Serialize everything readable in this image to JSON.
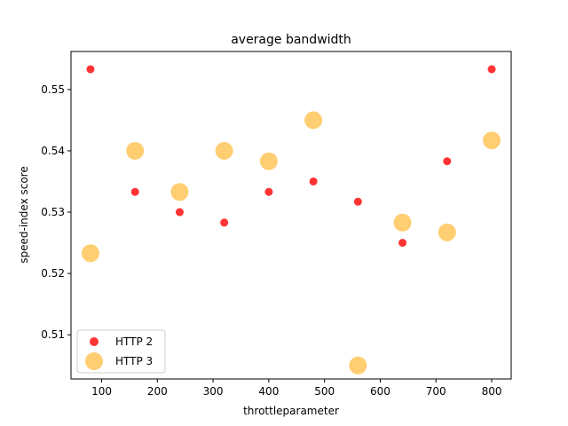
{
  "chart_data": {
    "type": "scatter",
    "title": "average bandwidth",
    "xlabel": "throttleparameter",
    "ylabel": "speed-index score",
    "xlim": [
      45,
      835
    ],
    "ylim": [
      0.5028,
      0.5562
    ],
    "xticks": [
      100,
      200,
      300,
      400,
      500,
      600,
      700,
      800
    ],
    "yticks": [
      0.51,
      0.52,
      0.53,
      0.54,
      0.55
    ],
    "grid": false,
    "legend_position": "lower-left",
    "series": [
      {
        "name": "HTTP 2",
        "color": "#ff0000",
        "marker": "small-circle",
        "points": [
          {
            "x": 80,
            "y": 0.5533
          },
          {
            "x": 160,
            "y": 0.5333
          },
          {
            "x": 240,
            "y": 0.53
          },
          {
            "x": 320,
            "y": 0.5283
          },
          {
            "x": 400,
            "y": 0.5333
          },
          {
            "x": 480,
            "y": 0.535
          },
          {
            "x": 560,
            "y": 0.5317
          },
          {
            "x": 640,
            "y": 0.525
          },
          {
            "x": 720,
            "y": 0.5383
          },
          {
            "x": 800,
            "y": 0.5533
          }
        ]
      },
      {
        "name": "HTTP 3",
        "color": "#ffa500",
        "marker": "large-circle",
        "points": [
          {
            "x": 80,
            "y": 0.5233
          },
          {
            "x": 160,
            "y": 0.54
          },
          {
            "x": 240,
            "y": 0.5333
          },
          {
            "x": 320,
            "y": 0.54
          },
          {
            "x": 400,
            "y": 0.5383
          },
          {
            "x": 480,
            "y": 0.545
          },
          {
            "x": 560,
            "y": 0.505
          },
          {
            "x": 640,
            "y": 0.5283
          },
          {
            "x": 720,
            "y": 0.5267
          },
          {
            "x": 800,
            "y": 0.5417
          }
        ]
      }
    ]
  }
}
